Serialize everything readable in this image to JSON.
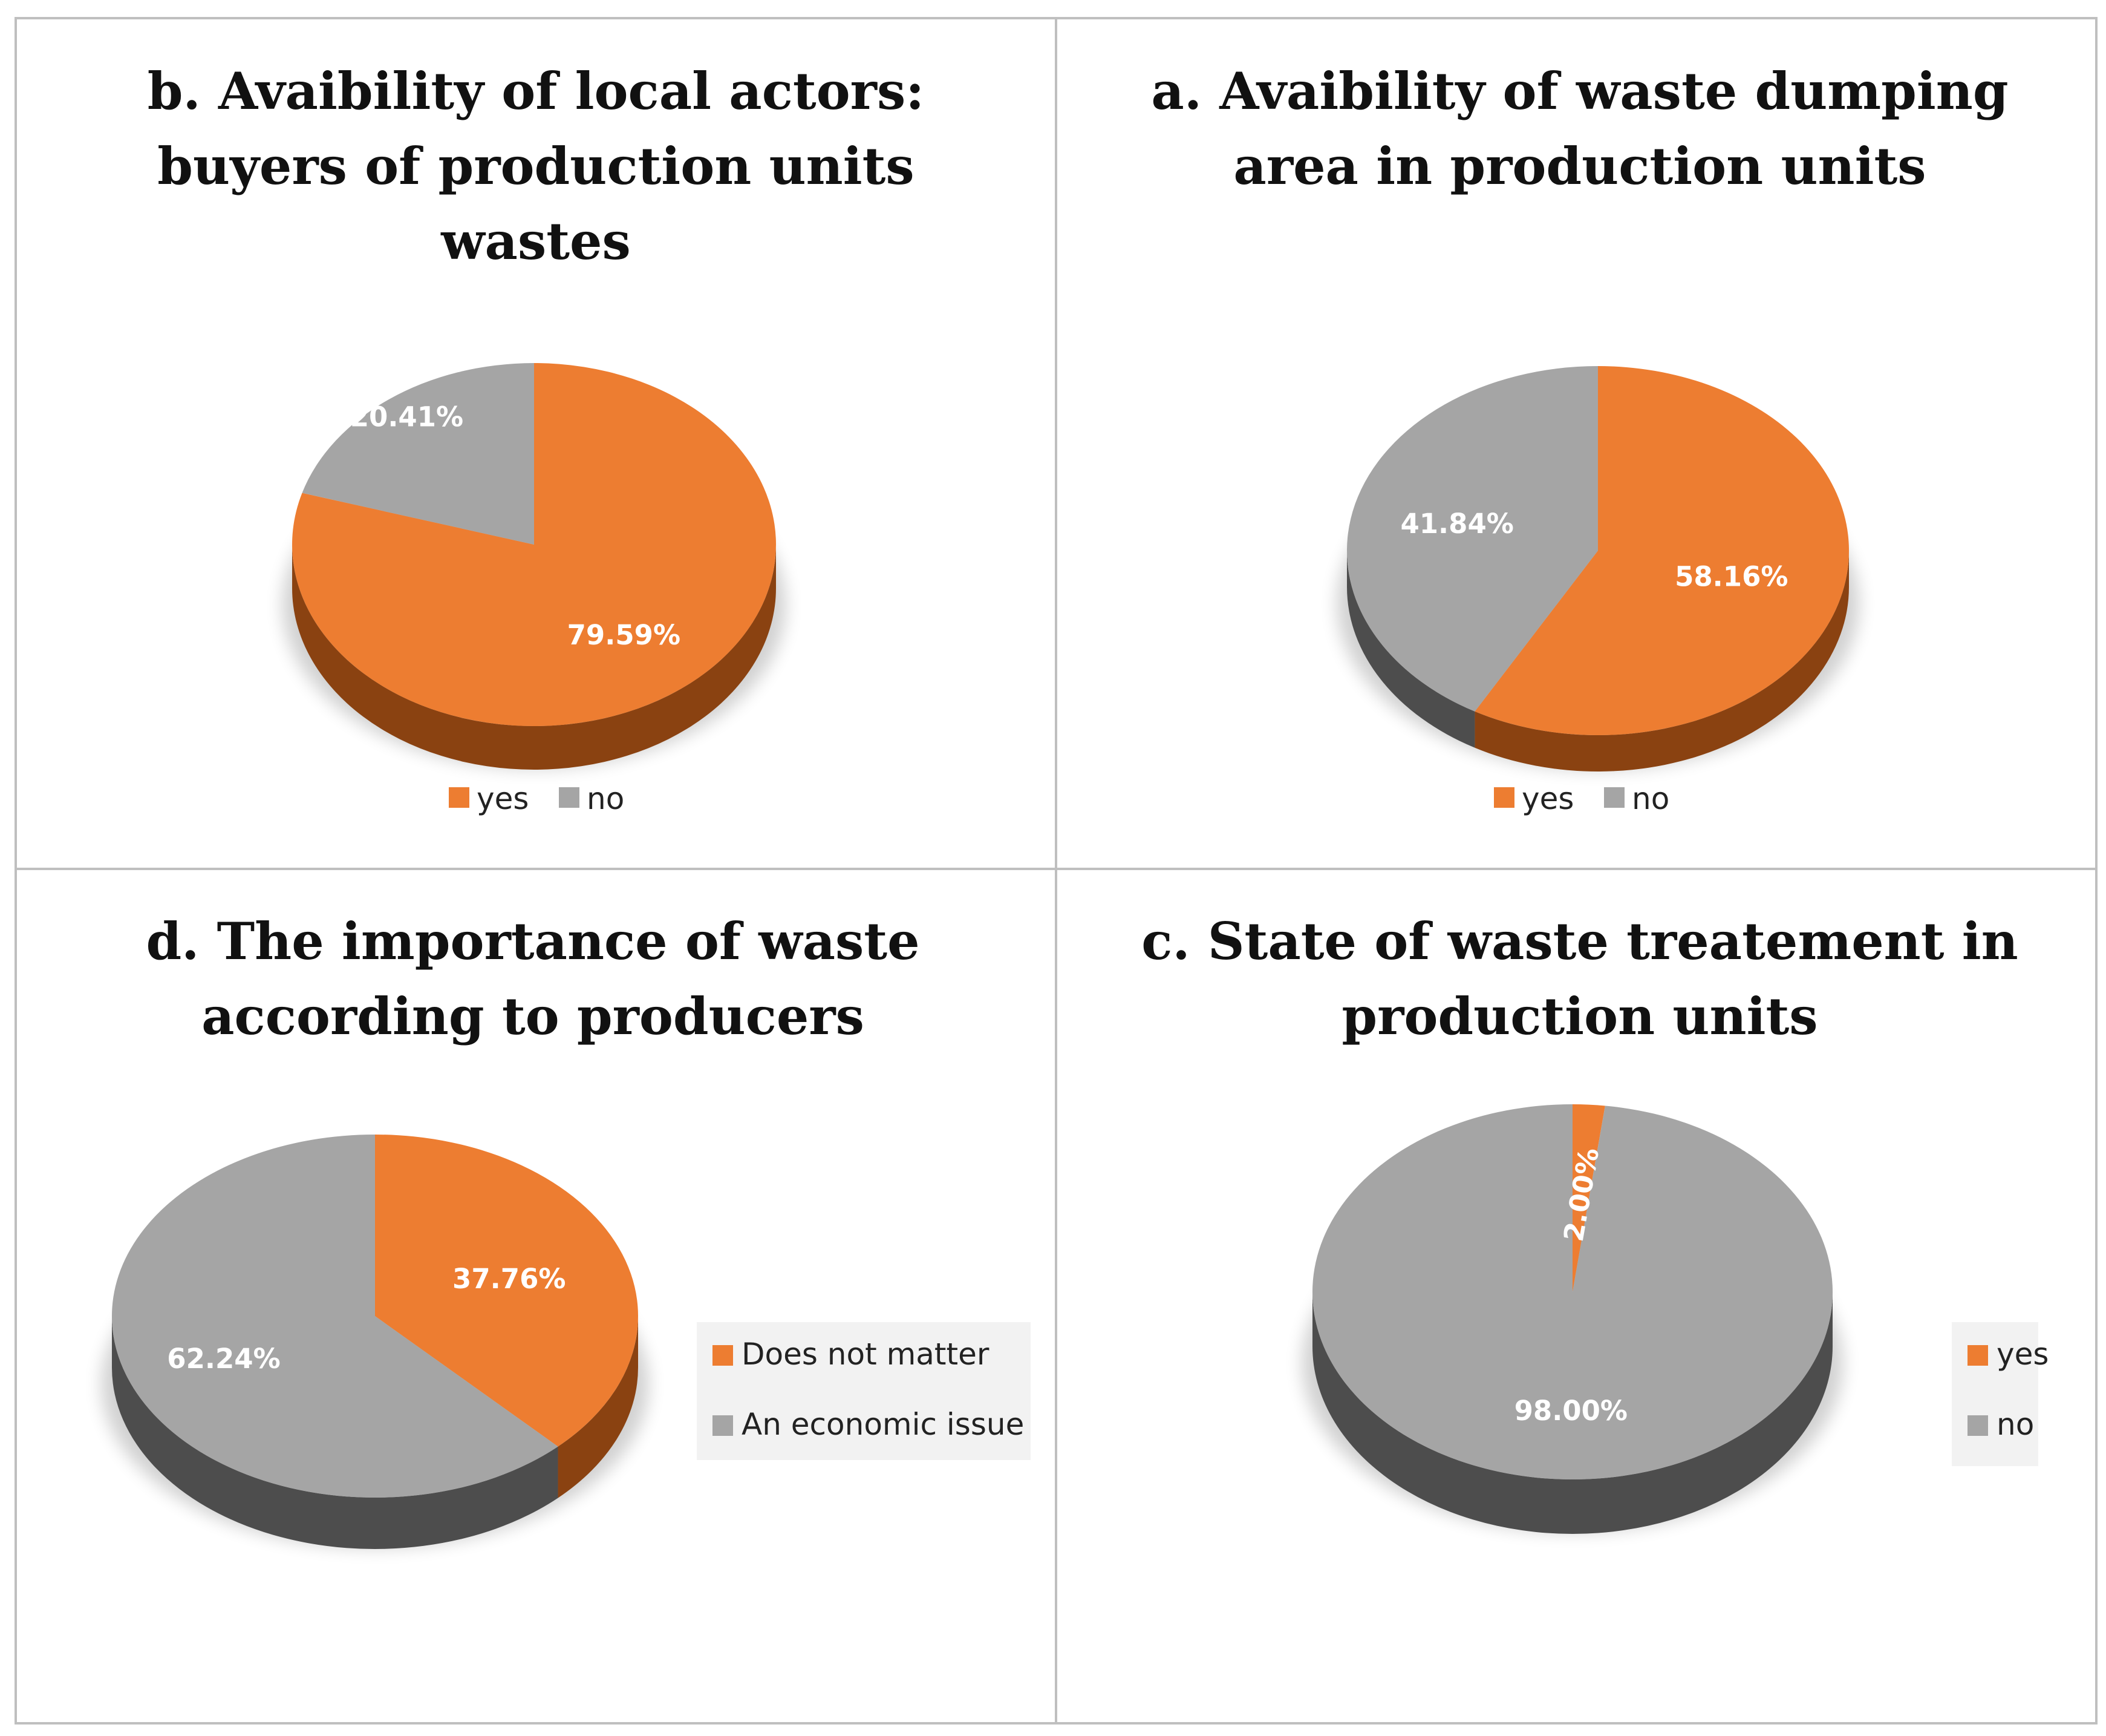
{
  "colors": {
    "yes": "#ED7D31",
    "no": "#A5A5A5",
    "yes_side": "#8A4211",
    "no_side": "#4D4D4D",
    "frame": "#BFBFBF"
  },
  "chart_data": [
    {
      "id": "b",
      "type": "pie",
      "title_lines": [
        "b. Avaibility of local actors:",
        "buyers of production units",
        "wastes"
      ],
      "slices": [
        {
          "name": "yes",
          "value": 79.59,
          "label": "79.59%",
          "color_key": "yes"
        },
        {
          "name": "no",
          "value": 20.41,
          "label": "20.41%",
          "color_key": "no"
        }
      ],
      "legend": [
        "yes",
        "no"
      ],
      "legend_position": "bottom"
    },
    {
      "id": "a",
      "type": "pie",
      "title_lines": [
        "a. Avaibility of waste dumping",
        "area in production units"
      ],
      "slices": [
        {
          "name": "yes",
          "value": 58.16,
          "label": "58.16%",
          "color_key": "yes"
        },
        {
          "name": "no",
          "value": 41.84,
          "label": "41.84%",
          "color_key": "no"
        }
      ],
      "legend": [
        "yes",
        "no"
      ],
      "legend_position": "bottom"
    },
    {
      "id": "d",
      "type": "pie",
      "title_lines": [
        "d. The importance of waste",
        "according to producers"
      ],
      "slices": [
        {
          "name": "Does not matter",
          "value": 37.76,
          "label": "37.76%",
          "color_key": "yes"
        },
        {
          "name": "An economic issue",
          "value": 62.24,
          "label": "62.24%",
          "color_key": "no"
        }
      ],
      "legend": [
        "Does not matter",
        "An economic issue"
      ],
      "legend_position": "right"
    },
    {
      "id": "c",
      "type": "pie",
      "title_lines": [
        "c. State of waste treatement in",
        "production units"
      ],
      "slices": [
        {
          "name": "yes",
          "value": 2.0,
          "label": "2.00%",
          "color_key": "yes"
        },
        {
          "name": "no",
          "value": 98.0,
          "label": "98.00%",
          "color_key": "no"
        }
      ],
      "legend": [
        "yes",
        "no"
      ],
      "legend_position": "right"
    }
  ]
}
